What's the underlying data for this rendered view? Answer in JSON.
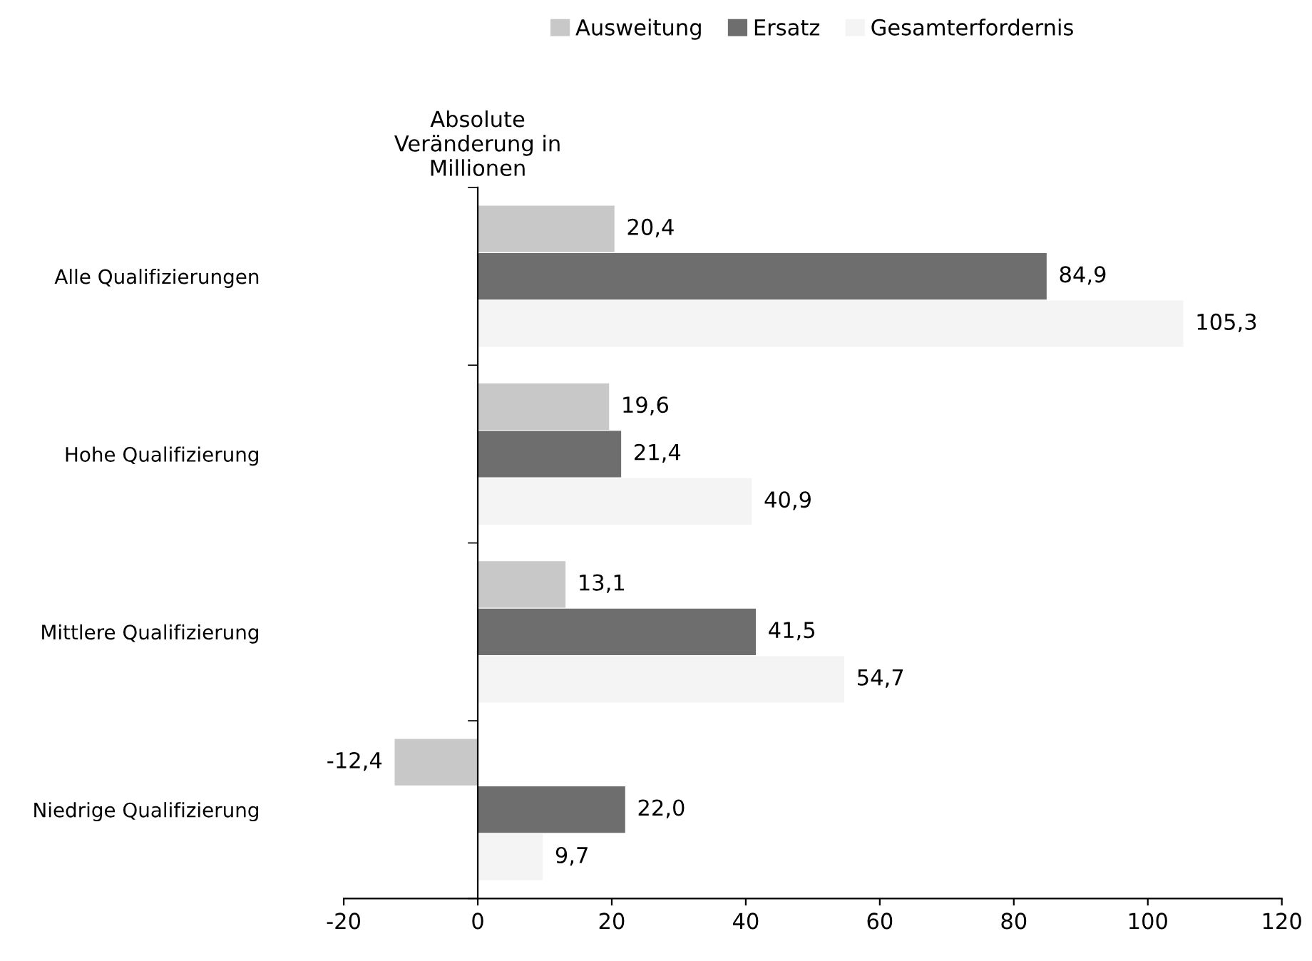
{
  "chart_data": {
    "type": "bar",
    "orientation": "horizontal",
    "xlabel": "Absolute\nVeränderung in\nMillionen",
    "categories": [
      "Alle Qualifizierungen",
      "Hohe Qualifizierung",
      "Mittlere Qualifizierung",
      "Niedrige Qualifizierung"
    ],
    "series": [
      {
        "name": "Ausweitung",
        "color": "#c8c8c8",
        "values": [
          20.4,
          19.6,
          13.1,
          -12.4
        ],
        "value_labels": [
          "20,4",
          "19,6",
          "13,1",
          "-12,4"
        ]
      },
      {
        "name": "Ersatz",
        "color": "#6e6e6e",
        "values": [
          84.9,
          21.4,
          41.5,
          22.0
        ],
        "value_labels": [
          "84,9",
          "21,4",
          "41,5",
          "22,0"
        ]
      },
      {
        "name": "Gesamterfordernis",
        "color": "#f4f4f4",
        "values": [
          105.3,
          40.9,
          54.7,
          9.7
        ],
        "value_labels": [
          "105,3",
          "40,9",
          "54,7",
          "9,7"
        ]
      }
    ],
    "xlim": [
      -20,
      120
    ],
    "xticks": [
      -20,
      0,
      20,
      40,
      60,
      80,
      100,
      120
    ],
    "legend": "top"
  }
}
